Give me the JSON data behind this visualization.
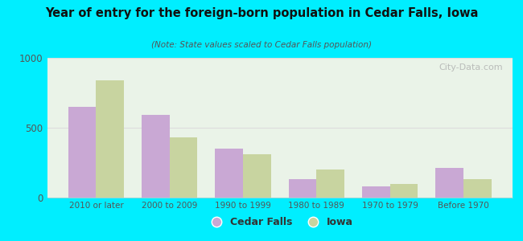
{
  "title": "Year of entry for the foreign-born population in Cedar Falls, Iowa",
  "subtitle": "(Note: State values scaled to Cedar Falls population)",
  "categories": [
    "2010 or later",
    "2000 to 2009",
    "1990 to 1999",
    "1980 to 1989",
    "1970 to 1979",
    "Before 1970"
  ],
  "cedar_falls": [
    650,
    590,
    350,
    130,
    80,
    210
  ],
  "iowa": [
    840,
    430,
    310,
    200,
    95,
    130
  ],
  "cedar_falls_color": "#c9a8d4",
  "iowa_color": "#c8d4a0",
  "background_outer": "#00eeff",
  "background_inner_topleft": "#d8edd8",
  "background_inner_bottomright": "#f5f8f0",
  "ylim": [
    0,
    1000
  ],
  "yticks": [
    0,
    500,
    1000
  ],
  "bar_width": 0.38,
  "watermark": "City-Data.com",
  "legend_cedar_falls": "Cedar Falls",
  "legend_iowa": "Iowa",
  "title_color": "#111111",
  "subtitle_color": "#555555",
  "tick_color": "#555555",
  "grid_color": "#dddddd"
}
